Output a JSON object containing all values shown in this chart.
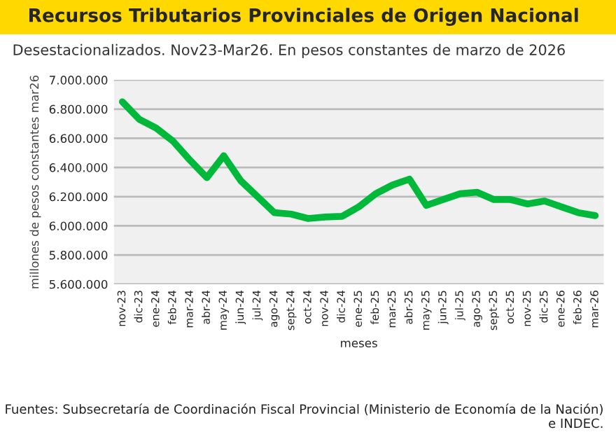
{
  "chart_data": {
    "type": "line",
    "title": "Recursos Tributarios Provinciales de Origen Nacional",
    "subtitle": "Desestacionalizados. Nov23-Mar26. En pesos constantes de marzo de 2026",
    "xlabel": "meses",
    "ylabel": "millones de pesos constantes mar26",
    "categories": [
      "nov-23",
      "dic-23",
      "ene-24",
      "feb-24",
      "mar-24",
      "abr-24",
      "may-24",
      "jun-24",
      "jul-24",
      "ago-24",
      "sept-24",
      "oct-24",
      "nov-24",
      "dic-24",
      "ene-25",
      "feb-25",
      "mar-25",
      "abr-25",
      "may-25",
      "jun-25",
      "jul-25",
      "ago-25",
      "sept-25",
      "oct-25",
      "nov-25",
      "dic-25",
      "ene-26",
      "feb-26",
      "mar-26"
    ],
    "series": [
      {
        "color": "#00b93a",
        "values": [
          6850000,
          6730000,
          6670000,
          6580000,
          6450000,
          6330000,
          6480000,
          6310000,
          6200000,
          6090000,
          6080000,
          6050000,
          6060000,
          6065000,
          6130000,
          6220000,
          6280000,
          6320000,
          6140000,
          6180000,
          6220000,
          6230000,
          6180000,
          6180000,
          6150000,
          6170000,
          6130000,
          6090000,
          6070000
        ]
      }
    ],
    "ylim": [
      5600000,
      7000000
    ],
    "yticks": [
      {
        "value": 5600000,
        "label": "5.600.000"
      },
      {
        "value": 5800000,
        "label": "5.800.000"
      },
      {
        "value": 6000000,
        "label": "6.000.000"
      },
      {
        "value": 6200000,
        "label": "6.200.000"
      },
      {
        "value": 6400000,
        "label": "6.400.000"
      },
      {
        "value": 6600000,
        "label": "6.600.000"
      },
      {
        "value": 6800000,
        "label": "6.800.000"
      },
      {
        "value": 7000000,
        "label": "7.000.000"
      }
    ],
    "grid": "y",
    "legend": false,
    "marker": "none",
    "line_style": "solid",
    "annotations": [
      "Fuentes: Subsecretaría de Coordinación Fiscal Provincial (Ministerio de Economía de la Nación) e INDEC."
    ]
  }
}
